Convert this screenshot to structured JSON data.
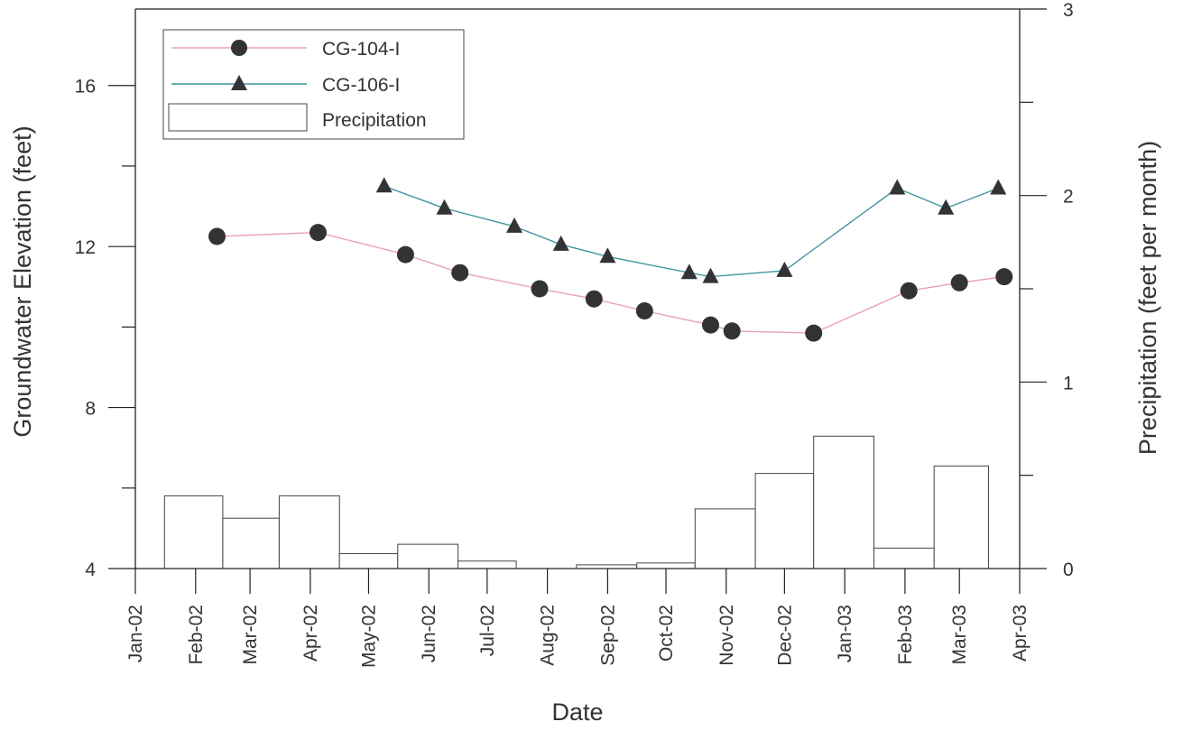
{
  "chart_data": {
    "type": "line",
    "xlabel": "Date",
    "ylabel": "Groundwater Elevation (feet)",
    "y2label": "Precipitation (feet per month)",
    "ylim": [
      4,
      17.9
    ],
    "y2lim": [
      0,
      3
    ],
    "y_ticks": [
      4,
      8,
      12,
      16
    ],
    "y2_ticks": [
      0,
      1,
      2,
      3
    ],
    "x_range": [
      "2002-01-01",
      "2003-04-01"
    ],
    "x_ticks": [
      {
        "date": "2002-01-01",
        "label": "Jan-02"
      },
      {
        "date": "2002-02-01",
        "label": "Feb-02"
      },
      {
        "date": "2002-03-01",
        "label": "Mar-02"
      },
      {
        "date": "2002-04-01",
        "label": "Apr-02"
      },
      {
        "date": "2002-05-01",
        "label": "May-02"
      },
      {
        "date": "2002-06-01",
        "label": "Jun-02"
      },
      {
        "date": "2002-07-01",
        "label": "Jul-02"
      },
      {
        "date": "2002-08-01",
        "label": "Aug-02"
      },
      {
        "date": "2002-09-01",
        "label": "Sep-02"
      },
      {
        "date": "2002-10-01",
        "label": "Oct-02"
      },
      {
        "date": "2002-11-01",
        "label": "Nov-02"
      },
      {
        "date": "2002-12-01",
        "label": "Dec-02"
      },
      {
        "date": "2003-01-01",
        "label": "Jan-03"
      },
      {
        "date": "2003-02-01",
        "label": "Feb-03"
      },
      {
        "date": "2003-03-01",
        "label": "Mar-03"
      },
      {
        "date": "2003-04-01",
        "label": "Apr-03"
      }
    ],
    "grid": false,
    "legend_position": "top-left",
    "series": [
      {
        "name": "CG-104-I",
        "type": "line",
        "axis": "left",
        "color": "#e8a2b0",
        "marker": "circle",
        "points": [
          {
            "x": "2002-02-12",
            "y": 12.25
          },
          {
            "x": "2002-04-05",
            "y": 12.35
          },
          {
            "x": "2002-05-20",
            "y": 11.8
          },
          {
            "x": "2002-06-17",
            "y": 11.35
          },
          {
            "x": "2002-07-28",
            "y": 10.95
          },
          {
            "x": "2002-08-25",
            "y": 10.7
          },
          {
            "x": "2002-09-20",
            "y": 10.4
          },
          {
            "x": "2002-10-24",
            "y": 10.05
          },
          {
            "x": "2002-11-04",
            "y": 9.9
          },
          {
            "x": "2002-12-16",
            "y": 9.85
          },
          {
            "x": "2003-02-03",
            "y": 10.9
          },
          {
            "x": "2003-03-01",
            "y": 11.1
          },
          {
            "x": "2003-03-24",
            "y": 11.25
          }
        ]
      },
      {
        "name": "CG-106-I",
        "type": "line",
        "axis": "left",
        "color": "#3e97a0",
        "marker": "triangle",
        "points": [
          {
            "x": "2002-05-09",
            "y": 13.5
          },
          {
            "x": "2002-06-09",
            "y": 12.95
          },
          {
            "x": "2002-07-15",
            "y": 12.5
          },
          {
            "x": "2002-08-08",
            "y": 12.05
          },
          {
            "x": "2002-09-01",
            "y": 11.75
          },
          {
            "x": "2002-10-13",
            "y": 11.35
          },
          {
            "x": "2002-10-24",
            "y": 11.25
          },
          {
            "x": "2002-12-01",
            "y": 11.4
          },
          {
            "x": "2003-01-28",
            "y": 13.45
          },
          {
            "x": "2003-02-22",
            "y": 12.95
          },
          {
            "x": "2003-03-21",
            "y": 13.45
          }
        ]
      },
      {
        "name": "Precipitation",
        "type": "bar",
        "axis": "right",
        "color": "#ffffff",
        "bars": [
          {
            "start": "2002-01-16",
            "end": "2002-02-15",
            "value": 0.39
          },
          {
            "start": "2002-02-15",
            "end": "2002-03-16",
            "value": 0.27
          },
          {
            "start": "2002-03-16",
            "end": "2002-04-16",
            "value": 0.39
          },
          {
            "start": "2002-04-16",
            "end": "2002-05-16",
            "value": 0.08
          },
          {
            "start": "2002-05-16",
            "end": "2002-06-16",
            "value": 0.13
          },
          {
            "start": "2002-06-16",
            "end": "2002-07-16",
            "value": 0.04
          },
          {
            "start": "2002-07-16",
            "end": "2002-08-16",
            "value": 0.0
          },
          {
            "start": "2002-08-16",
            "end": "2002-09-16",
            "value": 0.02
          },
          {
            "start": "2002-09-16",
            "end": "2002-10-16",
            "value": 0.03
          },
          {
            "start": "2002-10-16",
            "end": "2002-11-16",
            "value": 0.32
          },
          {
            "start": "2002-11-16",
            "end": "2002-12-16",
            "value": 0.51
          },
          {
            "start": "2002-12-16",
            "end": "2003-01-16",
            "value": 0.71
          },
          {
            "start": "2003-01-16",
            "end": "2003-02-16",
            "value": 0.11
          },
          {
            "start": "2003-02-16",
            "end": "2003-03-16",
            "value": 0.55
          }
        ]
      }
    ]
  }
}
